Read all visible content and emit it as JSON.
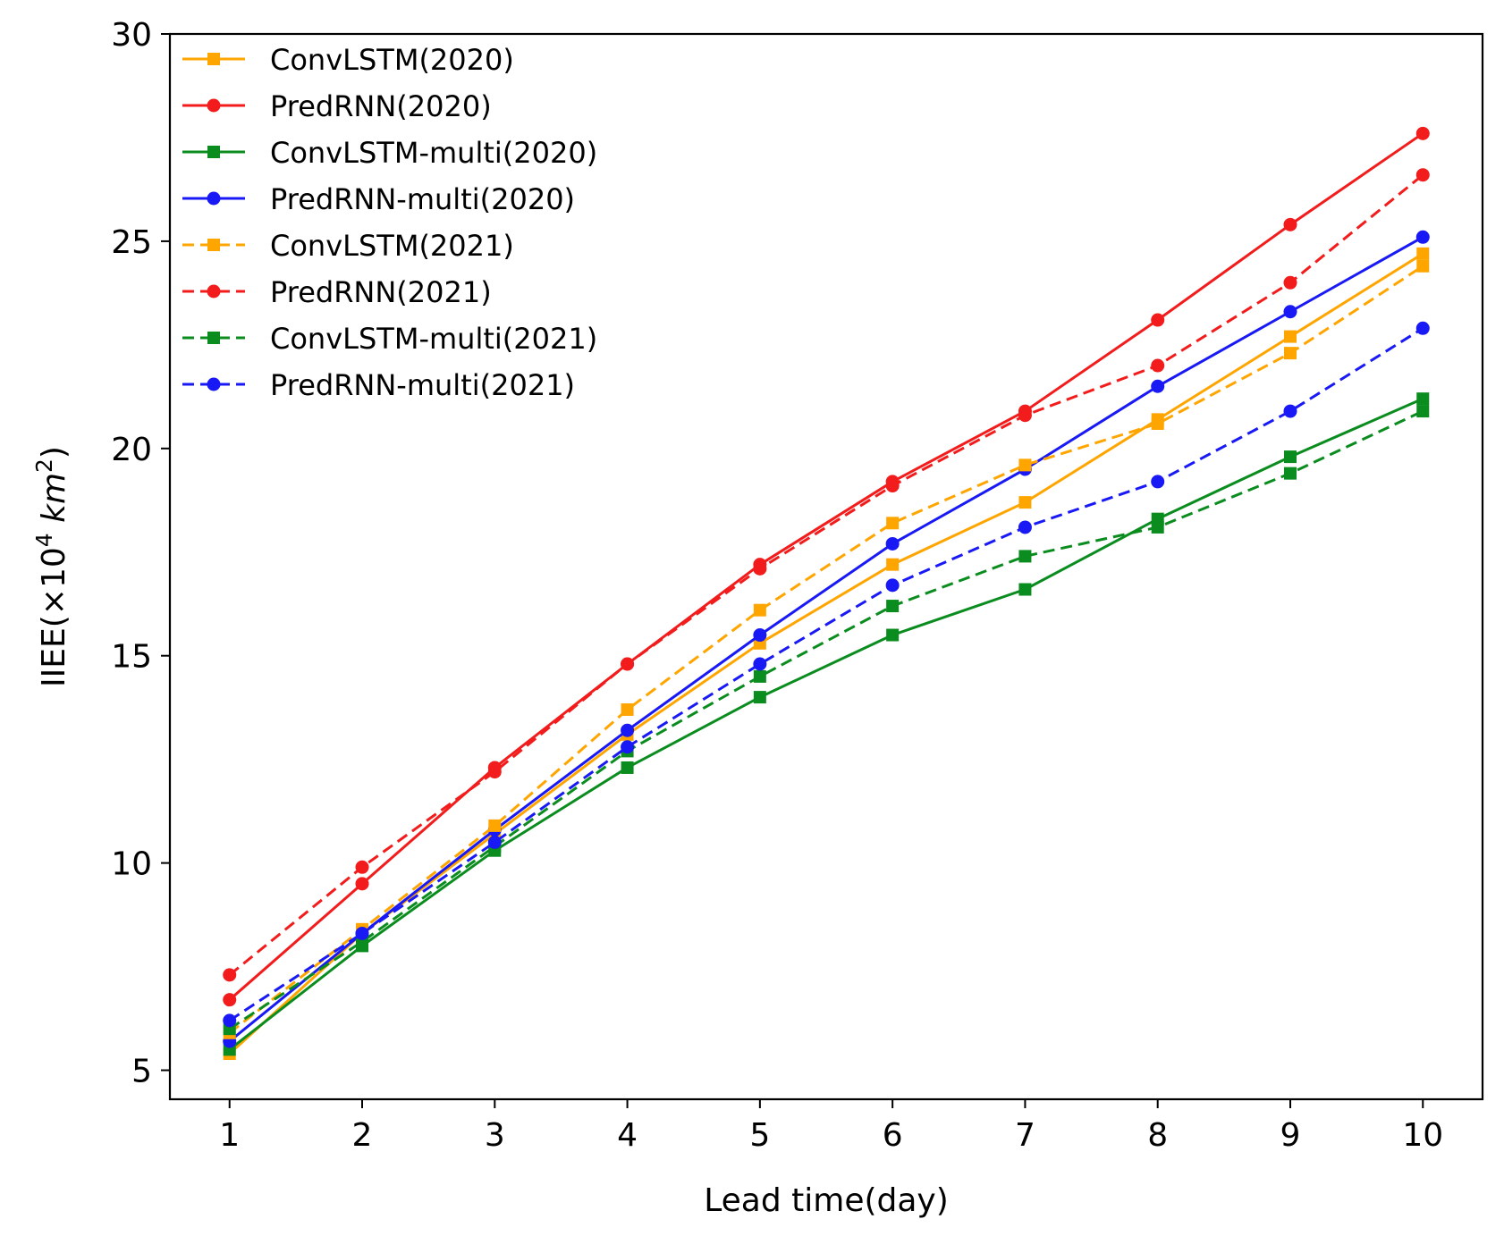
{
  "chart_data": {
    "type": "line",
    "xlabel": "Lead time(day)",
    "ylabel": {
      "prefix": "IIEE(×10",
      "exp1": "4",
      "unit": "km",
      "exp2": "2",
      "suffix": ")"
    },
    "xlim": [
      0.55,
      10.45
    ],
    "ylim": [
      4.3,
      30
    ],
    "x_ticks": [
      1,
      2,
      3,
      4,
      5,
      6,
      7,
      8,
      9,
      10
    ],
    "y_ticks": [
      5,
      10,
      15,
      20,
      25,
      30
    ],
    "grid": false,
    "legend_position": "top-left",
    "x": [
      1,
      2,
      3,
      4,
      5,
      6,
      7,
      8,
      9,
      10
    ],
    "series": [
      {
        "name": "ConvLSTM(2020)",
        "color": "#ffa500",
        "dash": false,
        "marker": "square",
        "values": [
          5.4,
          8.3,
          10.7,
          13.1,
          15.3,
          17.2,
          18.7,
          20.7,
          22.7,
          24.7
        ]
      },
      {
        "name": "PredRNN(2020)",
        "color": "#f21c1c",
        "dash": false,
        "marker": "circle",
        "values": [
          6.7,
          9.5,
          12.3,
          14.8,
          17.2,
          19.2,
          20.9,
          23.1,
          25.4,
          27.6
        ]
      },
      {
        "name": "ConvLSTM-multi(2020)",
        "color": "#0a8c1e",
        "dash": false,
        "marker": "square",
        "values": [
          5.5,
          8.0,
          10.3,
          12.3,
          14.0,
          15.5,
          16.6,
          18.3,
          19.8,
          21.2
        ]
      },
      {
        "name": "PredRNN-multi(2020)",
        "color": "#1919f5",
        "dash": false,
        "marker": "circle",
        "values": [
          5.7,
          8.3,
          10.8,
          13.2,
          15.5,
          17.7,
          19.5,
          21.5,
          23.3,
          25.1
        ]
      },
      {
        "name": "ConvLSTM(2021)",
        "color": "#ffa500",
        "dash": true,
        "marker": "square",
        "values": [
          5.9,
          8.4,
          10.9,
          13.7,
          16.1,
          18.2,
          19.6,
          20.6,
          22.3,
          24.4
        ]
      },
      {
        "name": "PredRNN(2021)",
        "color": "#f21c1c",
        "dash": true,
        "marker": "circle",
        "values": [
          7.3,
          9.9,
          12.2,
          14.8,
          17.1,
          19.1,
          20.8,
          22.0,
          24.0,
          26.6
        ]
      },
      {
        "name": "ConvLSTM-multi(2021)",
        "color": "#0a8c1e",
        "dash": true,
        "marker": "square",
        "values": [
          6.0,
          8.1,
          10.4,
          12.7,
          14.5,
          16.2,
          17.4,
          18.1,
          19.4,
          20.9
        ]
      },
      {
        "name": "PredRNN-multi(2021)",
        "color": "#1919f5",
        "dash": true,
        "marker": "circle",
        "values": [
          6.2,
          8.3,
          10.5,
          12.8,
          14.8,
          16.7,
          18.1,
          19.2,
          20.9,
          22.9
        ]
      }
    ]
  }
}
